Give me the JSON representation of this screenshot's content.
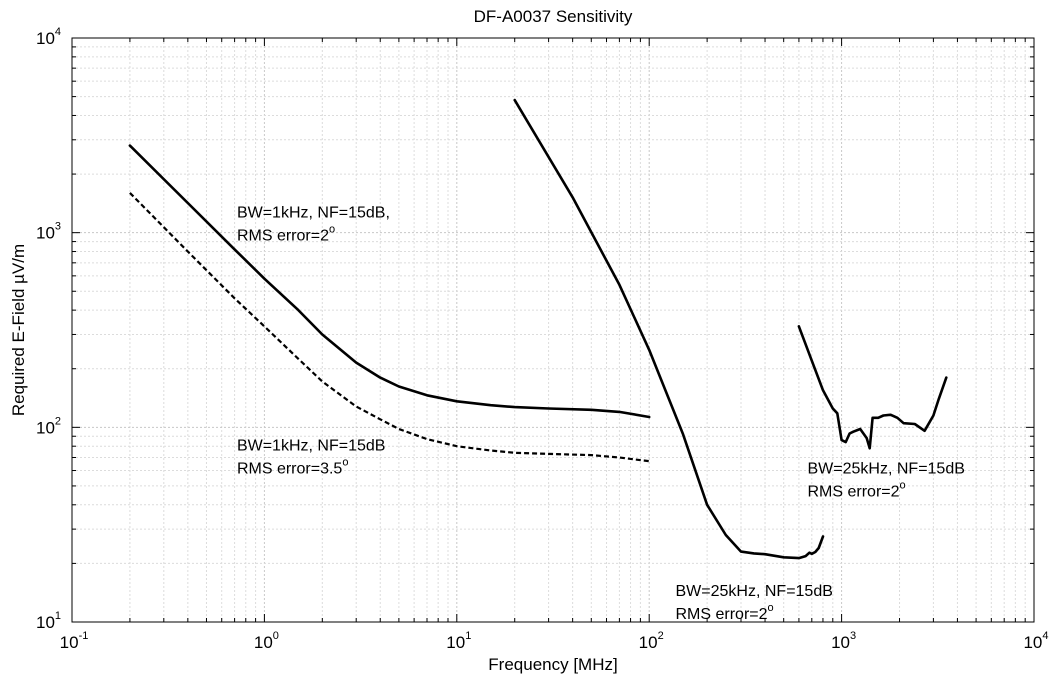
{
  "chart_data": {
    "type": "line",
    "title": "DF-A0037 Sensitivity",
    "xlabel": "Frequency [MHz]",
    "ylabel": "Required E-Field µV/m",
    "xscale": "log",
    "yscale": "log",
    "xlim": [
      0.1,
      10000
    ],
    "ylim": [
      10,
      10000
    ],
    "xticks": [
      {
        "base": "10",
        "exp": "-1"
      },
      {
        "base": "10",
        "exp": "0"
      },
      {
        "base": "10",
        "exp": "1"
      },
      {
        "base": "10",
        "exp": "2"
      },
      {
        "base": "10",
        "exp": "3"
      },
      {
        "base": "10",
        "exp": "4"
      }
    ],
    "yticks": [
      {
        "base": "10",
        "exp": "1"
      },
      {
        "base": "10",
        "exp": "2"
      },
      {
        "base": "10",
        "exp": "3"
      },
      {
        "base": "10",
        "exp": "4"
      }
    ],
    "grid": true,
    "series": [
      {
        "style": "solid",
        "points": [
          [
            0.2,
            2800
          ],
          [
            0.4,
            1420
          ],
          [
            0.7,
            820
          ],
          [
            1,
            580
          ],
          [
            1.5,
            400
          ],
          [
            2,
            300
          ],
          [
            3,
            215
          ],
          [
            4,
            180
          ],
          [
            5,
            162
          ],
          [
            7,
            146
          ],
          [
            10,
            136
          ],
          [
            15,
            130
          ],
          [
            20,
            127
          ],
          [
            30,
            125
          ],
          [
            50,
            123
          ],
          [
            70,
            120
          ],
          [
            100,
            113
          ]
        ]
      },
      {
        "style": "dashed",
        "points": [
          [
            0.2,
            1600
          ],
          [
            0.4,
            800
          ],
          [
            0.7,
            460
          ],
          [
            1,
            330
          ],
          [
            1.5,
            225
          ],
          [
            2,
            172
          ],
          [
            3,
            128
          ],
          [
            4,
            110
          ],
          [
            5,
            98
          ],
          [
            7,
            87
          ],
          [
            10,
            80
          ],
          [
            15,
            76
          ],
          [
            20,
            74
          ],
          [
            30,
            73
          ],
          [
            50,
            72
          ],
          [
            70,
            70
          ],
          [
            100,
            67
          ]
        ]
      },
      {
        "style": "solid",
        "points": [
          [
            20,
            4800
          ],
          [
            40,
            1520
          ],
          [
            70,
            540
          ],
          [
            100,
            250
          ],
          [
            150,
            92
          ],
          [
            200,
            40
          ],
          [
            250,
            28
          ],
          [
            300,
            23
          ],
          [
            350,
            22.5
          ],
          [
            400,
            22.3
          ],
          [
            500,
            21.5
          ],
          [
            600,
            21.3
          ],
          [
            650,
            21.8
          ],
          [
            680,
            22.7
          ],
          [
            700,
            22.4
          ],
          [
            730,
            22.9
          ],
          [
            760,
            24
          ],
          [
            800,
            27.5
          ]
        ]
      },
      {
        "style": "solid",
        "points": [
          [
            600,
            330
          ],
          [
            700,
            220
          ],
          [
            800,
            155
          ],
          [
            900,
            125
          ],
          [
            950,
            118
          ],
          [
            1000,
            86
          ],
          [
            1050,
            84
          ],
          [
            1100,
            93
          ],
          [
            1150,
            95
          ],
          [
            1250,
            98
          ],
          [
            1350,
            88
          ],
          [
            1400,
            78
          ],
          [
            1450,
            112
          ],
          [
            1550,
            112
          ],
          [
            1650,
            115
          ],
          [
            1800,
            116
          ],
          [
            1950,
            112
          ],
          [
            2100,
            105
          ],
          [
            2400,
            104
          ],
          [
            2700,
            96
          ],
          [
            3000,
            115
          ],
          [
            3200,
            140
          ],
          [
            3500,
            180
          ]
        ]
      }
    ],
    "annotations": [
      {
        "x": 0.72,
        "y": 1200,
        "lines": [
          "BW=1kHz, NF=15dB,",
          "RMS error=2"
        ],
        "sup": "o"
      },
      {
        "x": 0.72,
        "y": 76,
        "lines": [
          "BW=1kHz, NF=15dB",
          "RMS error=3.5"
        ],
        "sup": "o"
      },
      {
        "x": 665,
        "y": 58,
        "lines": [
          "BW=25kHz, NF=15dB",
          "RMS error=2"
        ],
        "sup": "o"
      },
      {
        "x": 137,
        "y": 13.6,
        "lines": [
          "BW=25kHz, NF=15dB",
          "RMS error=2"
        ],
        "sup": "o"
      }
    ]
  }
}
